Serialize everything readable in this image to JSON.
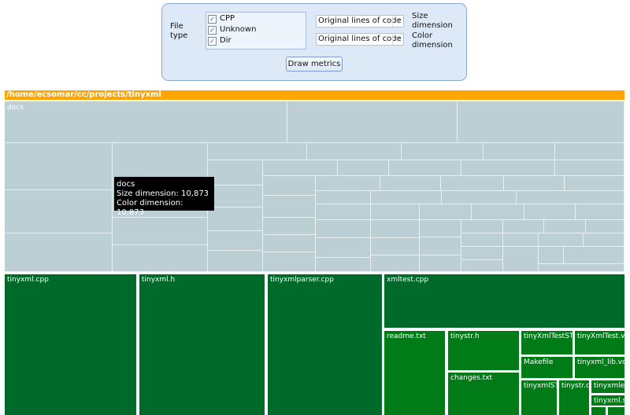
{
  "controls": {
    "file_type_label": "File\ntype",
    "file_types": [
      {
        "label": "CPP",
        "checked": true
      },
      {
        "label": "Unknown",
        "checked": true
      },
      {
        "label": "Dir",
        "checked": true
      }
    ],
    "size_select": "Original lines of code",
    "color_select": "Original lines of code",
    "size_label": "Size\ndimension",
    "color_label": "Color\ndimension",
    "draw_button": "Draw metrics"
  },
  "path": "/home/ecsomar/cc/projects/tinyxml",
  "treemap": {
    "docs_label": "docs",
    "files": [
      "tinyxml.cpp",
      "tinyxml.h",
      "tinyxmlparser.cpp",
      "xmltest.cpp",
      "readme.txt",
      "tinystr.h",
      "changes.txt",
      "tinyXmlTestST",
      "tinyXmlTest.vc",
      "Makefile",
      "tinyxml_lib.vc",
      "tinyxmlST",
      "tinystr.cpp",
      "tinyxmle",
      "tinyxml.s"
    ]
  },
  "tooltip": {
    "name": "docs",
    "size_line": "Size dimension: 10,873",
    "color_line": "Color dimension: 10,873"
  },
  "colors": {
    "accent_path_bar": "#ffa500",
    "docs_tile": "#bccfd5",
    "code_tile_dark": "#006a2a",
    "code_tile_mid": "#017b17"
  }
}
